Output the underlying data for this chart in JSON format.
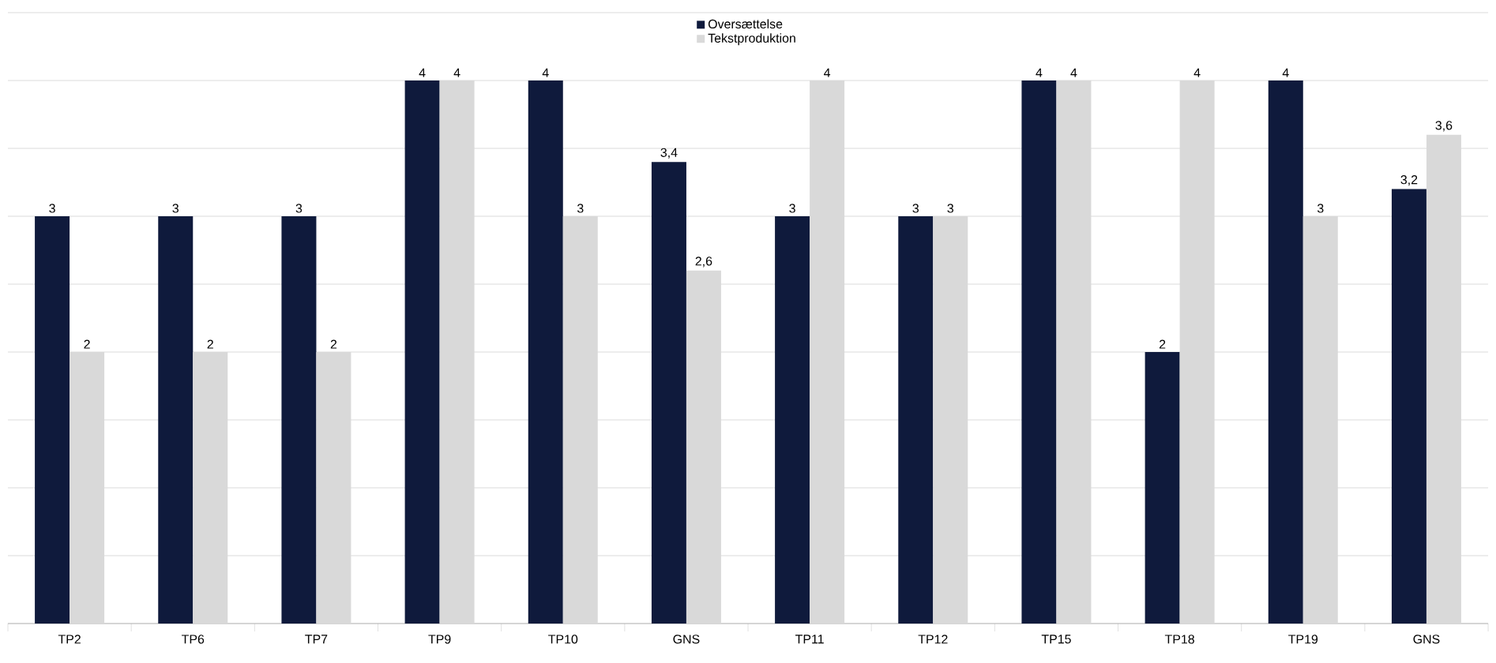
{
  "chart_data": {
    "type": "bar",
    "categories": [
      "TP2",
      "TP6",
      "TP7",
      "TP9",
      "TP10",
      "GNS",
      "TP11",
      "TP12",
      "TP15",
      "TP18",
      "TP19",
      "GNS"
    ],
    "series": [
      {
        "name": "Oversættelse",
        "color": "#0f1a3c",
        "values": [
          3,
          3,
          3,
          4,
          4,
          3.4,
          3,
          3,
          4,
          2,
          4,
          3.2
        ],
        "value_labels": [
          "3",
          "3",
          "3",
          "4",
          "4",
          "3,4",
          "3",
          "3",
          "4",
          "2",
          "4",
          "3,2"
        ]
      },
      {
        "name": "Tekstproduktion",
        "color": "#d9d9d9",
        "values": [
          2,
          2,
          2,
          4,
          3,
          2.6,
          4,
          3,
          4,
          4,
          3,
          3.6
        ],
        "value_labels": [
          "2",
          "2",
          "2",
          "4",
          "3",
          "2,6",
          "4",
          "3",
          "4",
          "4",
          "3",
          "3,6"
        ]
      }
    ],
    "ylim": [
      0,
      4.5
    ],
    "yticks": [
      {
        "value": 0,
        "label": null
      },
      {
        "value": 0.5,
        "label": null
      },
      {
        "value": 1,
        "label": null
      },
      {
        "value": 1.5,
        "label": null
      },
      {
        "value": 2,
        "label": null
      },
      {
        "value": 2.5,
        "label": null
      },
      {
        "value": 3,
        "label": null
      },
      {
        "value": 3.5,
        "label": null
      },
      {
        "value": 4,
        "label": null
      },
      {
        "value": 4.5,
        "label": null
      }
    ],
    "tick_labels": "x",
    "grid": "y",
    "legend": "top"
  }
}
